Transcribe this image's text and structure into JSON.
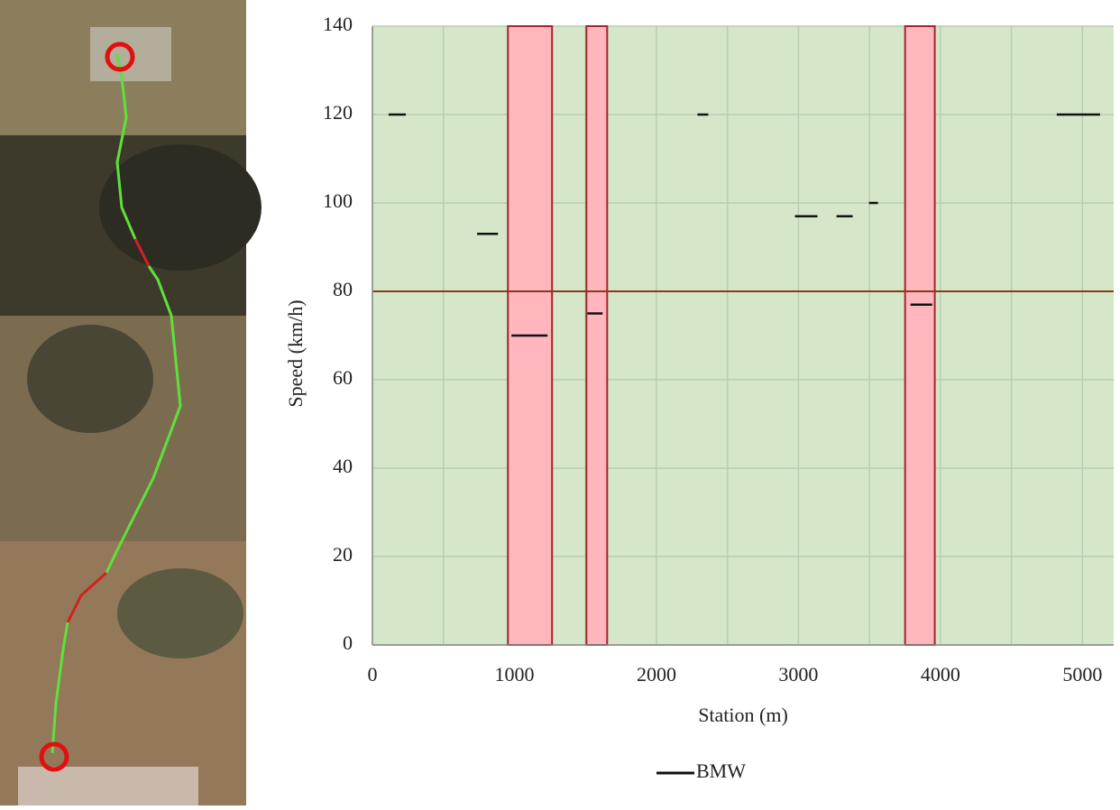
{
  "chart_data": {
    "type": "segments",
    "xlabel": "Station (m)",
    "ylabel": "Speed (km/h)",
    "xlim": [
      0,
      5220
    ],
    "xticks": [
      0,
      1000,
      2000,
      3000,
      4000,
      5000
    ],
    "ylim": [
      0,
      140
    ],
    "yticks": [
      0,
      20,
      40,
      60,
      80,
      100,
      120,
      140
    ],
    "grid": true,
    "background": "#d5e7c8",
    "grid_color": "#b8cdb0",
    "bands": {
      "color": "#ffb6bd",
      "edge": "#a3262a",
      "start": [
        954,
        1507,
        3751
      ],
      "end": [
        1265,
        1653,
        3960
      ]
    },
    "hlines": {
      "color": "#8b3a12",
      "values": [
        80
      ]
    },
    "series": [
      {
        "name": "BMW",
        "color": "#111111",
        "x_start": [
          114,
          737,
          979,
          1513,
          2289,
          2975,
          3268,
          3497,
          3789,
          4819
        ],
        "x_end": [
          235,
          884,
          1233,
          1621,
          2365,
          3134,
          3382,
          3560,
          3942,
          5124
        ],
        "values": [
          120,
          93,
          70,
          75,
          120,
          97,
          97,
          100,
          77,
          120
        ]
      }
    ],
    "legend": "bottom"
  }
}
